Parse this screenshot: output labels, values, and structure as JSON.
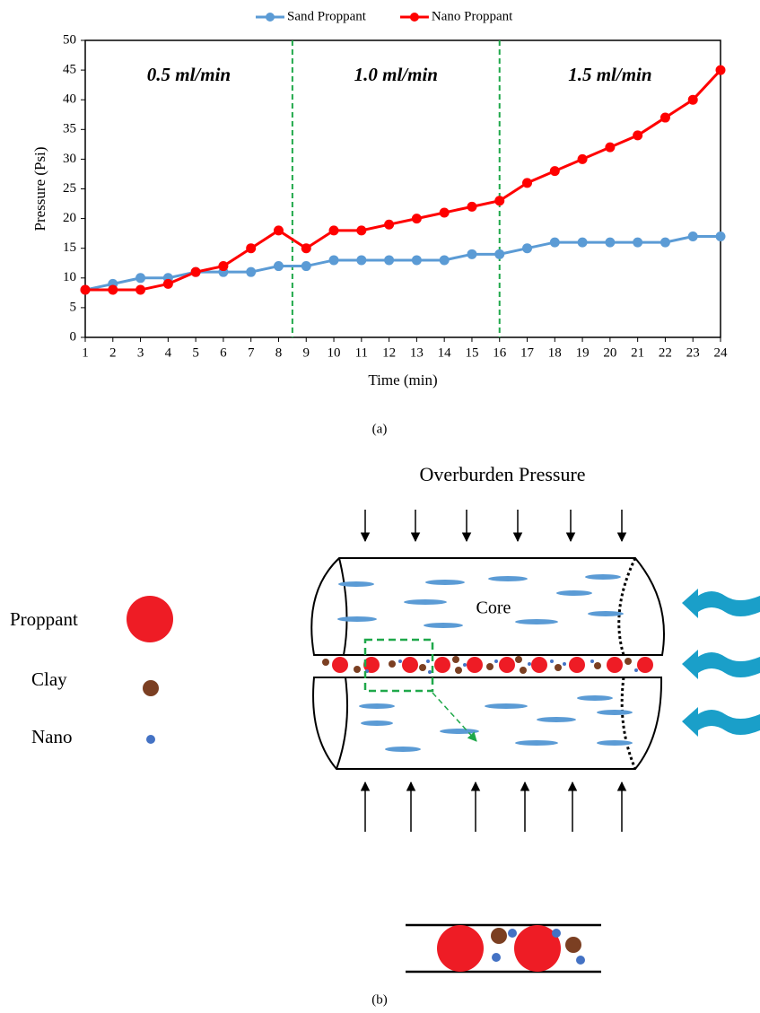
{
  "chart_data": {
    "type": "line",
    "x_label": "Time (min)",
    "y_label": "Pressure (Psi)",
    "x": [
      1,
      2,
      3,
      4,
      5,
      6,
      7,
      8,
      9,
      10,
      11,
      12,
      13,
      14,
      15,
      16,
      17,
      18,
      19,
      20,
      21,
      22,
      23,
      24
    ],
    "series": [
      {
        "name": "Sand Proppant",
        "color": "#5b9bd5",
        "values": [
          8,
          9,
          10,
          10,
          11,
          11,
          11,
          12,
          12,
          13,
          13,
          13,
          13,
          13,
          14,
          14,
          15,
          16,
          16,
          16,
          16,
          16,
          17,
          17
        ]
      },
      {
        "name": "Nano Proppant",
        "color": "#ff0000",
        "values": [
          8,
          8,
          8,
          9,
          11,
          12,
          15,
          18,
          15,
          18,
          18,
          19,
          20,
          21,
          22,
          23,
          26,
          28,
          30,
          32,
          34,
          37,
          40,
          45
        ]
      }
    ],
    "xlim": [
      1,
      24
    ],
    "xticks": [
      1,
      2,
      3,
      4,
      5,
      6,
      7,
      8,
      9,
      10,
      11,
      12,
      13,
      14,
      15,
      16,
      17,
      18,
      19,
      20,
      21,
      22,
      23,
      24
    ],
    "ylim": [
      0,
      50
    ],
    "yticks": [
      0,
      5,
      10,
      15,
      20,
      25,
      30,
      35,
      40,
      45,
      50
    ],
    "vlines": [
      8.5,
      16
    ],
    "vline_color": "#1fa84a",
    "annotations": [
      "0.5 ml/min",
      "1.0 ml/min",
      "1.5 ml/min"
    ],
    "annotation_color": "#1fa84a",
    "legend": "top"
  },
  "captions": [
    "(a)",
    "(b)"
  ],
  "diagram": {
    "overburden": "Overburden Pressure",
    "core": "Core",
    "legend": [
      "Proppant",
      "Clay",
      "Nano"
    ]
  }
}
